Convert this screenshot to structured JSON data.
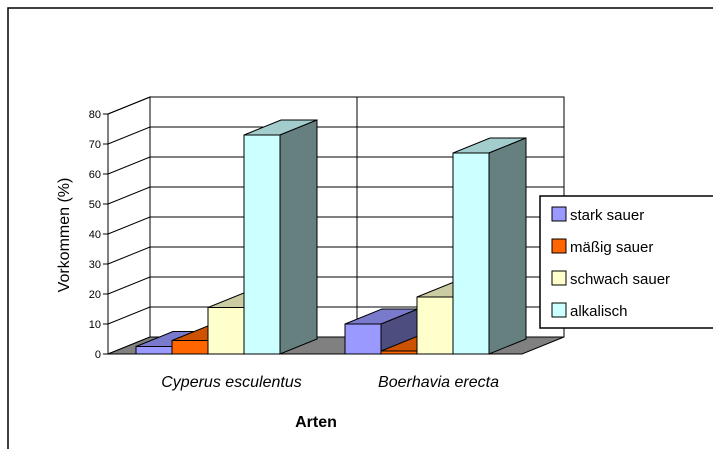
{
  "chart_data": {
    "type": "bar",
    "subtype": "3d-clustered-column",
    "title": "",
    "xlabel": "Arten",
    "ylabel": "Vorkommen (%)",
    "categories": [
      "Cyperus esculentus",
      "Boerhavia erecta"
    ],
    "ylim": [
      0,
      80
    ],
    "yticks": [
      "0",
      "10",
      "20",
      "30",
      "40",
      "50",
      "60",
      "70",
      "80"
    ],
    "grid": true,
    "legend": "right",
    "series": [
      {
        "name": "stark sauer",
        "values": [
          2.5,
          10
        ],
        "color": "#9999ff"
      },
      {
        "name": "mäßig sauer",
        "values": [
          4.5,
          1
        ],
        "color": "#ff6600"
      },
      {
        "name": "schwach sauer",
        "values": [
          15.5,
          19
        ],
        "color": "#ffffcc"
      },
      {
        "name": "alkalisch",
        "values": [
          73,
          67
        ],
        "color": "#ccffff"
      }
    ]
  }
}
